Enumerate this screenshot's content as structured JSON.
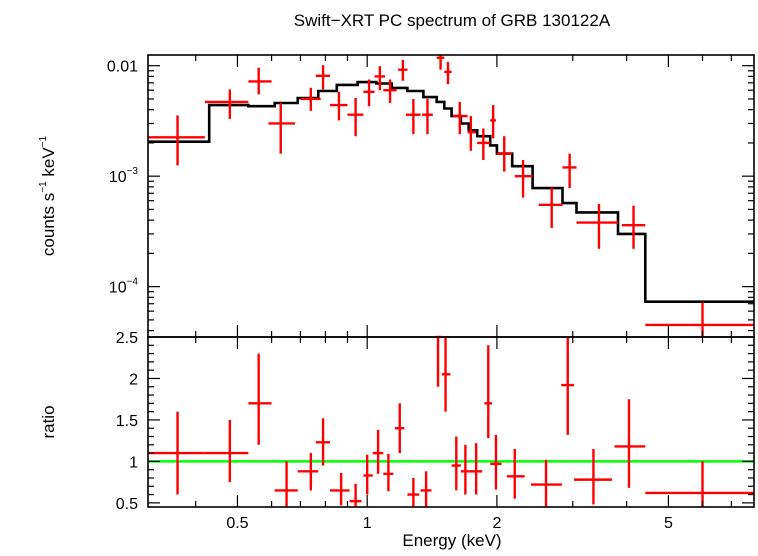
{
  "chart_data": {
    "type": "scatter",
    "title": "Swift−XRT PC spectrum of GRB 130122A",
    "xlabel": "Energy (keV)",
    "xscale": "log",
    "xlim": [
      0.31,
      7.9
    ],
    "panels": [
      {
        "name": "spectrum",
        "ylabel_parts": [
          "counts s",
          "−1",
          " keV",
          "−1"
        ],
        "yscale": "log",
        "ylim": [
          3.5e-05,
          0.0125
        ],
        "ytick_values": [
          0.01,
          0.001,
          0.0001
        ],
        "ytick_labels": [
          {
            "base": "0.01",
            "exp": ""
          },
          {
            "base": "10",
            "exp": "−3"
          },
          {
            "base": "10",
            "exp": "−4"
          }
        ],
        "data_points": [
          {
            "x": 0.363,
            "xlo": 0.31,
            "xhi": 0.42,
            "y": 0.00225,
            "ylo": 0.00125,
            "yhi": 0.00355
          },
          {
            "x": 0.48,
            "xlo": 0.42,
            "xhi": 0.53,
            "y": 0.0047,
            "ylo": 0.0033,
            "yhi": 0.0061
          },
          {
            "x": 0.56,
            "xlo": 0.53,
            "xhi": 0.6,
            "y": 0.0072,
            "ylo": 0.0055,
            "yhi": 0.0096
          },
          {
            "x": 0.63,
            "xlo": 0.59,
            "xhi": 0.68,
            "y": 0.003,
            "ylo": 0.0016,
            "yhi": 0.0046
          },
          {
            "x": 0.74,
            "xlo": 0.7,
            "xhi": 0.78,
            "y": 0.005,
            "ylo": 0.0039,
            "yhi": 0.0063
          },
          {
            "x": 0.79,
            "xlo": 0.76,
            "xhi": 0.82,
            "y": 0.0081,
            "ylo": 0.0061,
            "yhi": 0.0101
          },
          {
            "x": 0.86,
            "xlo": 0.82,
            "xhi": 0.9,
            "y": 0.0044,
            "ylo": 0.0032,
            "yhi": 0.0058
          },
          {
            "x": 0.94,
            "xlo": 0.9,
            "xhi": 0.98,
            "y": 0.0036,
            "ylo": 0.0023,
            "yhi": 0.0051
          },
          {
            "x": 1.01,
            "xlo": 0.98,
            "xhi": 1.04,
            "y": 0.0058,
            "ylo": 0.0043,
            "yhi": 0.0075
          },
          {
            "x": 1.07,
            "xlo": 1.04,
            "xhi": 1.1,
            "y": 0.008,
            "ylo": 0.006,
            "yhi": 0.0099
          },
          {
            "x": 1.13,
            "xlo": 1.09,
            "xhi": 1.17,
            "y": 0.006,
            "ylo": 0.0046,
            "yhi": 0.0075
          },
          {
            "x": 1.21,
            "xlo": 1.18,
            "xhi": 1.24,
            "y": 0.0092,
            "ylo": 0.0073,
            "yhi": 0.0113
          },
          {
            "x": 1.28,
            "xlo": 1.23,
            "xhi": 1.33,
            "y": 0.0036,
            "ylo": 0.0024,
            "yhi": 0.005
          },
          {
            "x": 1.38,
            "xlo": 1.34,
            "xhi": 1.42,
            "y": 0.0036,
            "ylo": 0.0024,
            "yhi": 0.005
          },
          {
            "x": 1.48,
            "xlo": 1.45,
            "xhi": 1.51,
            "y": 0.0118,
            "ylo": 0.0092,
            "yhi": 0.0125
          },
          {
            "x": 1.54,
            "xlo": 1.51,
            "xhi": 1.57,
            "y": 0.0088,
            "ylo": 0.0068,
            "yhi": 0.0108
          },
          {
            "x": 1.64,
            "xlo": 1.58,
            "xhi": 1.71,
            "y": 0.0035,
            "ylo": 0.0024,
            "yhi": 0.0047
          },
          {
            "x": 1.74,
            "xlo": 1.71,
            "xhi": 1.79,
            "y": 0.0025,
            "ylo": 0.0017,
            "yhi": 0.0035
          },
          {
            "x": 1.86,
            "xlo": 1.8,
            "xhi": 1.93,
            "y": 0.002,
            "ylo": 0.0014,
            "yhi": 0.0027
          },
          {
            "x": 1.96,
            "xlo": 1.93,
            "xhi": 1.99,
            "y": 0.0032,
            "ylo": 0.0022,
            "yhi": 0.0044
          },
          {
            "x": 2.08,
            "xlo": 2.0,
            "xhi": 2.17,
            "y": 0.0016,
            "ylo": 0.0011,
            "yhi": 0.0023
          },
          {
            "x": 2.3,
            "xlo": 2.2,
            "xhi": 2.42,
            "y": 0.001,
            "ylo": 0.00064,
            "yhi": 0.0014
          },
          {
            "x": 2.68,
            "xlo": 2.5,
            "xhi": 2.84,
            "y": 0.00055,
            "ylo": 0.00034,
            "yhi": 0.00079
          },
          {
            "x": 2.95,
            "xlo": 2.84,
            "xhi": 3.06,
            "y": 0.0012,
            "ylo": 0.00078,
            "yhi": 0.0016
          },
          {
            "x": 3.45,
            "xlo": 3.06,
            "xhi": 3.82,
            "y": 0.00038,
            "ylo": 0.00022,
            "yhi": 0.00056
          },
          {
            "x": 4.15,
            "xlo": 3.9,
            "xhi": 4.42,
            "y": 0.00036,
            "ylo": 0.00022,
            "yhi": 0.00054
          },
          {
            "x": 6.0,
            "xlo": 4.42,
            "xhi": 7.9,
            "y": 4.5e-05,
            "ylo": 3.5e-05,
            "yhi": 7.2e-05
          }
        ],
        "model_steps": [
          {
            "x0": 0.31,
            "x1": 0.43,
            "y": 0.00205
          },
          {
            "x0": 0.43,
            "x1": 0.53,
            "y": 0.0044
          },
          {
            "x0": 0.53,
            "x1": 0.61,
            "y": 0.0043
          },
          {
            "x0": 0.61,
            "x1": 0.69,
            "y": 0.0046
          },
          {
            "x0": 0.69,
            "x1": 0.77,
            "y": 0.0051
          },
          {
            "x0": 0.77,
            "x1": 0.85,
            "y": 0.0059
          },
          {
            "x0": 0.85,
            "x1": 0.95,
            "y": 0.0067
          },
          {
            "x0": 0.95,
            "x1": 1.05,
            "y": 0.0071
          },
          {
            "x0": 1.05,
            "x1": 1.14,
            "y": 0.0069
          },
          {
            "x0": 1.14,
            "x1": 1.24,
            "y": 0.0063
          },
          {
            "x0": 1.24,
            "x1": 1.35,
            "y": 0.0059
          },
          {
            "x0": 1.35,
            "x1": 1.45,
            "y": 0.0052
          },
          {
            "x0": 1.45,
            "x1": 1.51,
            "y": 0.0047
          },
          {
            "x0": 1.51,
            "x1": 1.57,
            "y": 0.0041
          },
          {
            "x0": 1.57,
            "x1": 1.65,
            "y": 0.0035
          },
          {
            "x0": 1.65,
            "x1": 1.72,
            "y": 0.003
          },
          {
            "x0": 1.72,
            "x1": 1.8,
            "y": 0.0026
          },
          {
            "x0": 1.8,
            "x1": 1.93,
            "y": 0.0023
          },
          {
            "x0": 1.93,
            "x1": 2.0,
            "y": 0.0019
          },
          {
            "x0": 2.0,
            "x1": 2.17,
            "y": 0.0016
          },
          {
            "x0": 2.17,
            "x1": 2.42,
            "y": 0.00123
          },
          {
            "x0": 2.42,
            "x1": 2.84,
            "y": 0.00078
          },
          {
            "x0": 2.84,
            "x1": 3.06,
            "y": 0.00057
          },
          {
            "x0": 3.06,
            "x1": 3.82,
            "y": 0.00047
          },
          {
            "x0": 3.82,
            "x1": 4.42,
            "y": 0.0003
          },
          {
            "x0": 4.42,
            "x1": 7.9,
            "y": 7.3e-05
          }
        ]
      },
      {
        "name": "ratio",
        "ylabel": "ratio",
        "yscale": "linear",
        "ylim": [
          0.45,
          2.5
        ],
        "ytick_values": [
          0.5,
          1,
          1.5,
          2,
          2.5
        ],
        "ytick_labels": [
          "0.5",
          "1",
          "1.5",
          "2",
          "2.5"
        ],
        "reference_line": {
          "y": 1,
          "color": "#00ff00"
        },
        "data_points": [
          {
            "x": 0.363,
            "xlo": 0.31,
            "xhi": 0.42,
            "y": 1.1,
            "ylo": 0.6,
            "yhi": 1.6
          },
          {
            "x": 0.48,
            "xlo": 0.42,
            "xhi": 0.53,
            "y": 1.1,
            "ylo": 0.75,
            "yhi": 1.5
          },
          {
            "x": 0.56,
            "xlo": 0.53,
            "xhi": 0.6,
            "y": 1.7,
            "ylo": 1.2,
            "yhi": 2.3
          },
          {
            "x": 0.65,
            "xlo": 0.61,
            "xhi": 0.69,
            "y": 0.65,
            "ylo": 0.45,
            "yhi": 1.0
          },
          {
            "x": 0.74,
            "xlo": 0.69,
            "xhi": 0.77,
            "y": 0.88,
            "ylo": 0.65,
            "yhi": 1.1
          },
          {
            "x": 0.79,
            "xlo": 0.76,
            "xhi": 0.82,
            "y": 1.23,
            "ylo": 0.95,
            "yhi": 1.52
          },
          {
            "x": 0.87,
            "xlo": 0.82,
            "xhi": 0.91,
            "y": 0.65,
            "ylo": 0.47,
            "yhi": 0.86
          },
          {
            "x": 0.94,
            "xlo": 0.91,
            "xhi": 0.97,
            "y": 0.52,
            "ylo": 0.45,
            "yhi": 0.73
          },
          {
            "x": 1.0,
            "xlo": 0.98,
            "xhi": 1.03,
            "y": 0.83,
            "ylo": 0.6,
            "yhi": 1.08
          },
          {
            "x": 1.06,
            "xlo": 1.03,
            "xhi": 1.09,
            "y": 1.1,
            "ylo": 0.85,
            "yhi": 1.38
          },
          {
            "x": 1.12,
            "xlo": 1.09,
            "xhi": 1.15,
            "y": 0.85,
            "ylo": 0.64,
            "yhi": 1.09
          },
          {
            "x": 1.19,
            "xlo": 1.16,
            "xhi": 1.22,
            "y": 1.4,
            "ylo": 1.1,
            "yhi": 1.7
          },
          {
            "x": 1.28,
            "xlo": 1.24,
            "xhi": 1.32,
            "y": 0.6,
            "ylo": 0.45,
            "yhi": 0.8
          },
          {
            "x": 1.37,
            "xlo": 1.33,
            "xhi": 1.41,
            "y": 0.65,
            "ylo": 0.46,
            "yhi": 0.88
          },
          {
            "x": 1.46,
            "xlo": 1.44,
            "xhi": 1.49,
            "y": 2.5,
            "ylo": 1.9,
            "yhi": 2.5
          },
          {
            "x": 1.52,
            "xlo": 1.49,
            "xhi": 1.56,
            "y": 2.05,
            "ylo": 1.6,
            "yhi": 2.5
          },
          {
            "x": 1.61,
            "xlo": 1.57,
            "xhi": 1.65,
            "y": 0.95,
            "ylo": 0.65,
            "yhi": 1.3
          },
          {
            "x": 1.69,
            "xlo": 1.65,
            "xhi": 1.73,
            "y": 0.88,
            "ylo": 0.6,
            "yhi": 1.2
          },
          {
            "x": 1.79,
            "xlo": 1.73,
            "xhi": 1.85,
            "y": 0.88,
            "ylo": 0.6,
            "yhi": 1.22
          },
          {
            "x": 1.91,
            "xlo": 1.87,
            "xhi": 1.95,
            "y": 1.7,
            "ylo": 1.28,
            "yhi": 2.4
          },
          {
            "x": 1.99,
            "xlo": 1.93,
            "xhi": 2.05,
            "y": 0.97,
            "ylo": 0.66,
            "yhi": 1.32
          },
          {
            "x": 2.2,
            "xlo": 2.11,
            "xhi": 2.32,
            "y": 0.82,
            "ylo": 0.55,
            "yhi": 1.15
          },
          {
            "x": 2.6,
            "xlo": 2.4,
            "xhi": 2.83,
            "y": 0.72,
            "ylo": 0.45,
            "yhi": 1.02
          },
          {
            "x": 2.92,
            "xlo": 2.82,
            "xhi": 3.02,
            "y": 1.92,
            "ylo": 1.32,
            "yhi": 2.5
          },
          {
            "x": 3.35,
            "xlo": 3.02,
            "xhi": 3.7,
            "y": 0.78,
            "ylo": 0.48,
            "yhi": 1.15
          },
          {
            "x": 4.05,
            "xlo": 3.75,
            "xhi": 4.42,
            "y": 1.18,
            "ylo": 0.68,
            "yhi": 1.75
          },
          {
            "x": 6.0,
            "xlo": 4.42,
            "xhi": 7.9,
            "y": 0.62,
            "ylo": 0.45,
            "yhi": 1.0
          }
        ]
      }
    ],
    "xtick_values": [
      0.5,
      1,
      2,
      5
    ],
    "xtick_labels": [
      "0.5",
      "1",
      "2",
      "5"
    ],
    "grid": false,
    "colors": {
      "data": "#ff0000",
      "model": "#000000",
      "reference": "#00ff00",
      "axes": "#000000"
    }
  }
}
